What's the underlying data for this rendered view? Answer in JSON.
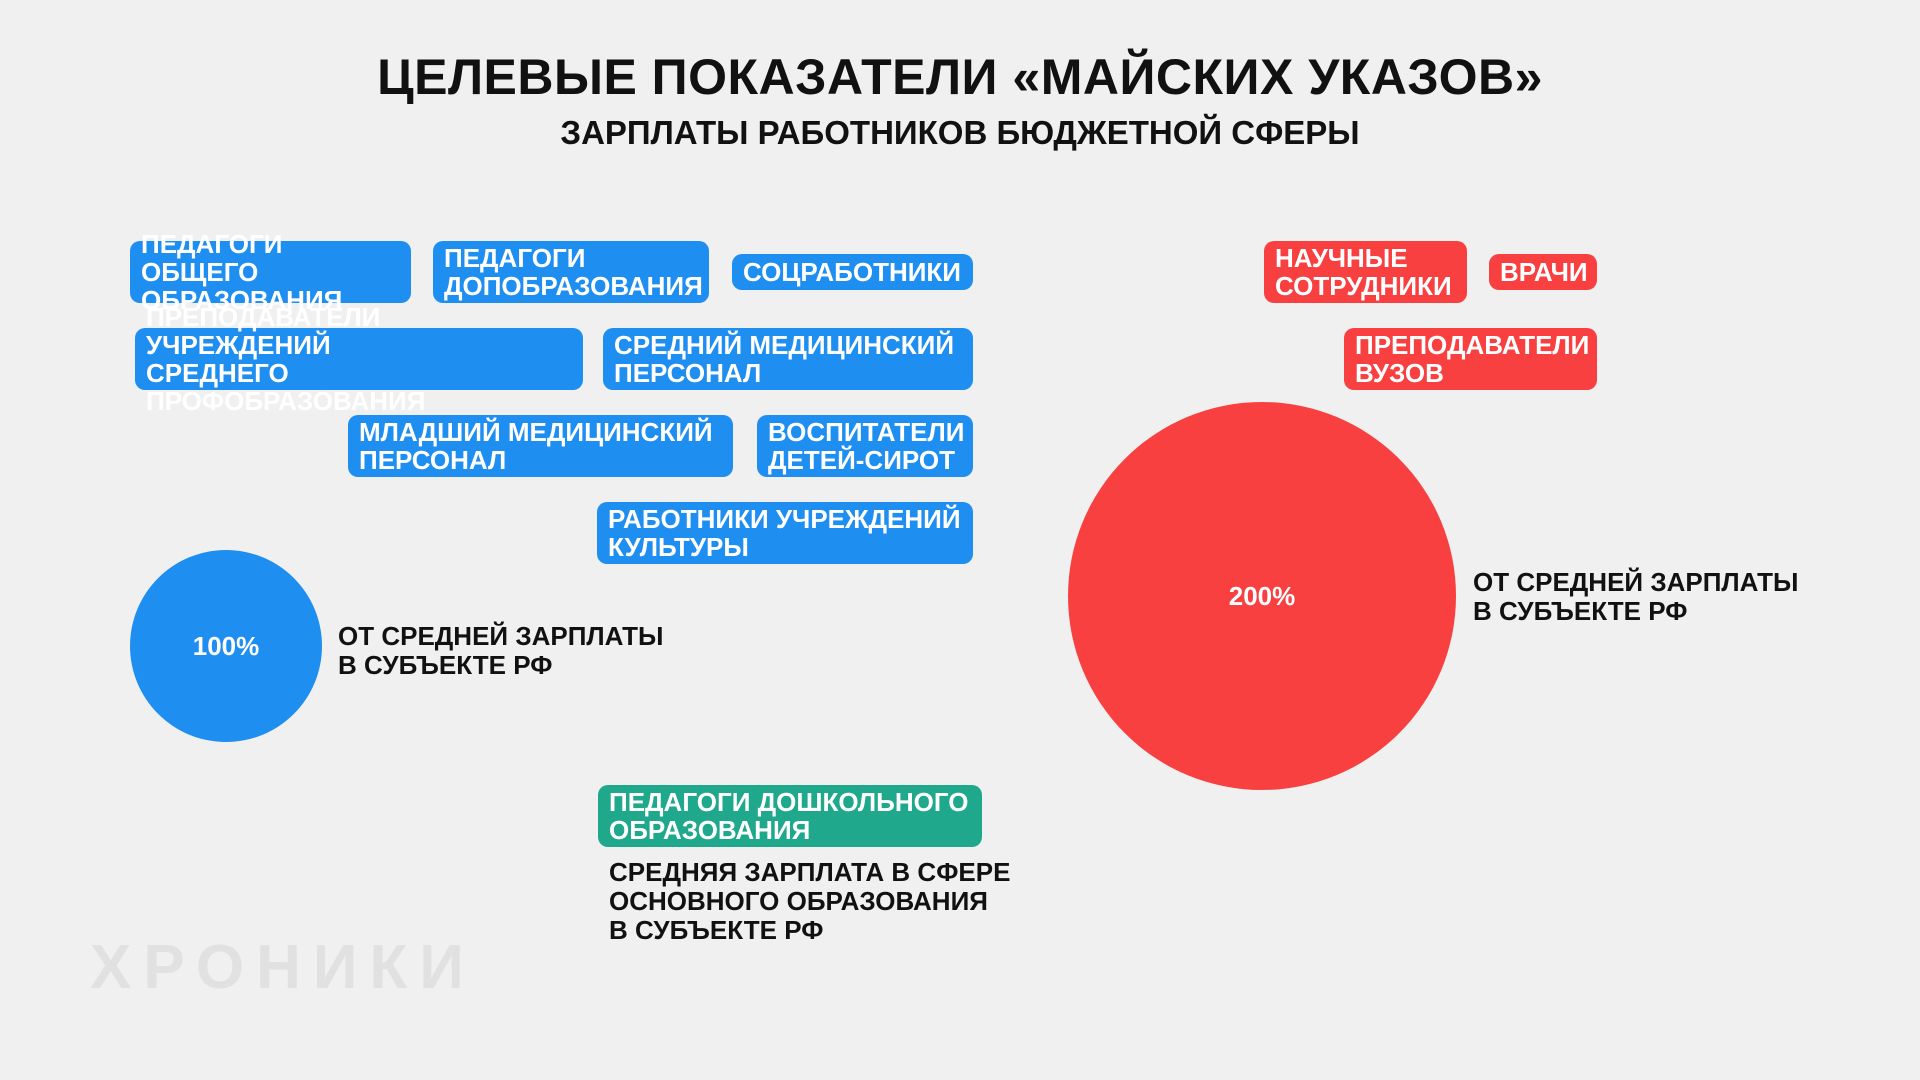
{
  "colors": {
    "background": "#f0f0f0",
    "blue": "#1f8ef1",
    "red": "#f94040",
    "green": "#1fa88c"
  },
  "title": "ЦЕЛЕВЫЕ ПОКАЗАТЕЛИ «МАЙСКИХ УКАЗОВ»",
  "subtitle": "ЗАРПЛАТЫ РАБОТНИКОВ БЮДЖЕТНОЙ СФЕРЫ",
  "groups": {
    "blue": {
      "tags": [
        "ПЕДАГОГИ ОБЩЕГО\nОБРАЗОВАНИЯ",
        "ПЕДАГОГИ\nДОПОБРАЗОВАНИЯ",
        "СОЦРАБОТНИКИ",
        "ПРЕПОДАВАТЕЛИ УЧРЕЖДЕНИЙ\nСРЕДНЕГО ПРОФОБРАЗОВАНИЯ",
        "СРЕДНИЙ МЕДИЦИНСКИЙ\nПЕРСОНАЛ",
        "МЛАДШИЙ МЕДИЦИНСКИЙ\nПЕРСОНАЛ",
        "ВОСПИТАТЕЛИ\nДЕТЕЙ-СИРОТ",
        "РАБОТНИКИ УЧРЕЖДЕНИЙ\nКУЛЬТУРЫ"
      ],
      "percent": "100%",
      "percent_value": 100,
      "caption": "ОТ СРЕДНЕЙ ЗАРПЛАТЫ\nВ СУБЪЕКТЕ РФ"
    },
    "red": {
      "tags": [
        "НАУЧНЫЕ\nСОТРУДНИКИ",
        "ВРАЧИ",
        "ПРЕПОДАВАТЕЛИ\nВУЗОВ"
      ],
      "percent": "200%",
      "percent_value": 200,
      "caption": "ОТ СРЕДНЕЙ ЗАРПЛАТЫ\nВ СУБЪЕКТЕ РФ"
    },
    "green": {
      "tags": [
        "ПЕДАГОГИ ДОШКОЛЬНОГО\nОБРАЗОВАНИЯ"
      ],
      "caption": "СРЕДНЯЯ ЗАРПЛАТА В СФЕРЕ\nОСНОВНОГО ОБРАЗОВАНИЯ\nВ СУБЪЕКТЕ РФ"
    }
  },
  "logo": "ХРОНИКИ"
}
